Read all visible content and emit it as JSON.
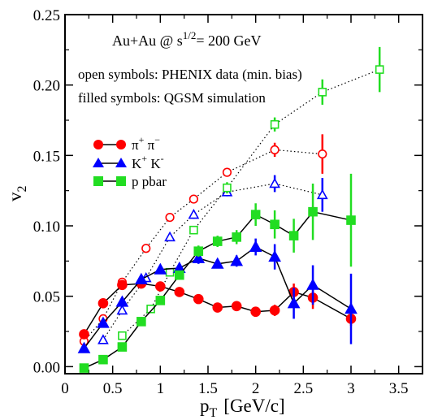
{
  "chart_data": {
    "type": "scatter",
    "xlabel": "p",
    "xlabel_sub": "T",
    "xlabel_units": "[GeV/c]",
    "ylabel": "v",
    "ylabel_sub": "2",
    "xlim": [
      0,
      3.75
    ],
    "ylim": [
      -0.005,
      0.25
    ],
    "x_ticks": [
      "0",
      "0.5",
      "1",
      "1.5",
      "2",
      "2.5",
      "3",
      "3.5"
    ],
    "x_tick_values": [
      0,
      0.5,
      1,
      1.5,
      2,
      2.5,
      3,
      3.5
    ],
    "y_ticks": [
      "0.00",
      "0.05",
      "0.10",
      "0.15",
      "0.20",
      "0.25"
    ],
    "y_tick_values": [
      0,
      0.05,
      0.1,
      0.15,
      0.2,
      0.25
    ],
    "annotations": {
      "title_main": "Au+Au @ s",
      "title_sup": "1/2",
      "title_rest": "= 200 GeV",
      "open_note": "open symbols: PHENIX data (min. bias)",
      "filled_note": "filled symbols: QGSM simulation"
    },
    "legend": [
      {
        "label": "π",
        "sup1": "+",
        "mid": " π",
        "sup2": "−",
        "marker": "circle",
        "color": "#ff0000"
      },
      {
        "label": "K",
        "sup1": "+",
        "mid": " K",
        "sup2": "-",
        "marker": "triangle",
        "color": "#0000ff"
      },
      {
        "label": "p pbar",
        "sup1": "",
        "mid": "",
        "sup2": "",
        "marker": "square",
        "color": "#22dd22"
      }
    ],
    "series": [
      {
        "kind": "simulation",
        "marker": "circle",
        "filled": true,
        "color": "#ff0000",
        "line": "solid",
        "x": [
          0.2,
          0.4,
          0.6,
          0.8,
          1.0,
          1.2,
          1.4,
          1.6,
          1.8,
          2.0,
          2.2,
          2.4,
          2.6,
          3.0
        ],
        "y": [
          0.023,
          0.045,
          0.058,
          0.059,
          0.057,
          0.053,
          0.048,
          0.042,
          0.043,
          0.039,
          0.04,
          0.053,
          0.049,
          0.034
        ],
        "err": [
          0.002,
          0.002,
          0.002,
          0.002,
          0.002,
          0.002,
          0.002,
          0.002,
          0.002,
          0.002,
          0.004,
          0.006,
          0.008,
          0.005
        ]
      },
      {
        "kind": "simulation",
        "marker": "triangle",
        "filled": true,
        "color": "#0000ff",
        "line": "solid",
        "x": [
          0.2,
          0.4,
          0.6,
          0.8,
          1.0,
          1.2,
          1.4,
          1.6,
          1.8,
          2.0,
          2.2,
          2.4,
          2.6,
          3.0
        ],
        "y": [
          0.013,
          0.031,
          0.046,
          0.062,
          0.069,
          0.07,
          0.077,
          0.073,
          0.075,
          0.085,
          0.078,
          0.045,
          0.058,
          0.041
        ],
        "err": [
          0.002,
          0.002,
          0.002,
          0.002,
          0.002,
          0.003,
          0.004,
          0.003,
          0.004,
          0.006,
          0.009,
          0.011,
          0.014,
          0.025
        ]
      },
      {
        "kind": "simulation",
        "marker": "square",
        "filled": true,
        "color": "#22dd22",
        "line": "solid",
        "x": [
          0.2,
          0.4,
          0.6,
          0.8,
          1.0,
          1.2,
          1.4,
          1.6,
          1.8,
          2.0,
          2.2,
          2.4,
          2.6,
          3.0
        ],
        "y": [
          -0.001,
          0.005,
          0.014,
          0.032,
          0.047,
          0.065,
          0.082,
          0.089,
          0.092,
          0.108,
          0.101,
          0.093,
          0.11,
          0.104
        ],
        "err": [
          0.001,
          0.001,
          0.002,
          0.002,
          0.003,
          0.003,
          0.004,
          0.004,
          0.005,
          0.008,
          0.01,
          0.012,
          0.02,
          0.033
        ]
      },
      {
        "kind": "data",
        "marker": "circle",
        "filled": false,
        "color": "#ff0000",
        "line": "dotted",
        "x": [
          0.2,
          0.4,
          0.6,
          0.85,
          1.1,
          1.35,
          1.7,
          2.2,
          2.7
        ],
        "y": [
          0.018,
          0.034,
          0.06,
          0.084,
          0.106,
          0.119,
          0.138,
          0.154,
          0.151
        ],
        "err": [
          0.001,
          0.001,
          0.001,
          0.002,
          0.002,
          0.002,
          0.003,
          0.005,
          0.014
        ]
      },
      {
        "kind": "data",
        "marker": "triangle",
        "filled": false,
        "color": "#0000ff",
        "line": "dotted",
        "x": [
          0.4,
          0.6,
          0.85,
          1.1,
          1.35,
          1.7,
          2.2,
          2.7
        ],
        "y": [
          0.019,
          0.04,
          0.063,
          0.092,
          0.108,
          0.124,
          0.13,
          0.122
        ],
        "err": [
          0.001,
          0.001,
          0.002,
          0.002,
          0.003,
          0.003,
          0.006,
          0.012
        ]
      },
      {
        "kind": "data",
        "marker": "square",
        "filled": false,
        "color": "#22dd22",
        "line": "dotted",
        "x": [
          0.6,
          0.9,
          1.1,
          1.35,
          1.7,
          2.2,
          2.7,
          3.3
        ],
        "y": [
          0.022,
          0.041,
          0.067,
          0.097,
          0.127,
          0.172,
          0.195,
          0.211
        ],
        "err": [
          0.001,
          0.002,
          0.002,
          0.003,
          0.004,
          0.005,
          0.009,
          0.016
        ]
      }
    ]
  }
}
